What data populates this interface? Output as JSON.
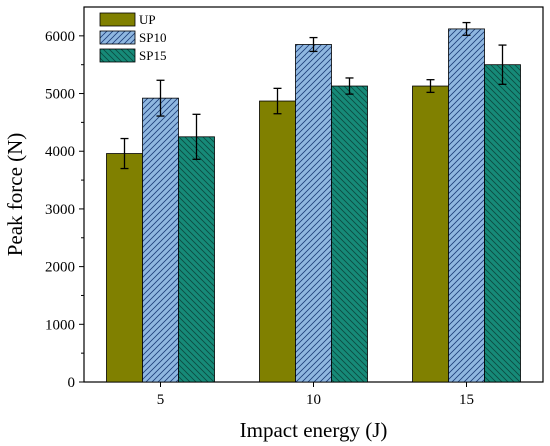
{
  "chart_data": {
    "type": "bar",
    "title": "",
    "xlabel": "Impact energy (J)",
    "ylabel": "Peak force (N)",
    "categories": [
      "5",
      "10",
      "15"
    ],
    "ylim": [
      0,
      6500
    ],
    "yticks": [
      0,
      1000,
      2000,
      3000,
      4000,
      5000,
      6000
    ],
    "legend_position": "top-left",
    "grid": false,
    "series": [
      {
        "name": "UP",
        "values": [
          3960,
          4870,
          5130
        ],
        "errors": [
          260,
          220,
          110
        ],
        "color": "#808000",
        "pattern": "solid"
      },
      {
        "name": "SP10",
        "values": [
          4920,
          5850,
          6120
        ],
        "errors": [
          310,
          120,
          110
        ],
        "color": "#8fb7e0",
        "pattern": "forward-hatch"
      },
      {
        "name": "SP15",
        "values": [
          4250,
          5130,
          5500
        ],
        "errors": [
          390,
          140,
          340
        ],
        "color": "#168a78",
        "pattern": "back-hatch"
      }
    ]
  }
}
